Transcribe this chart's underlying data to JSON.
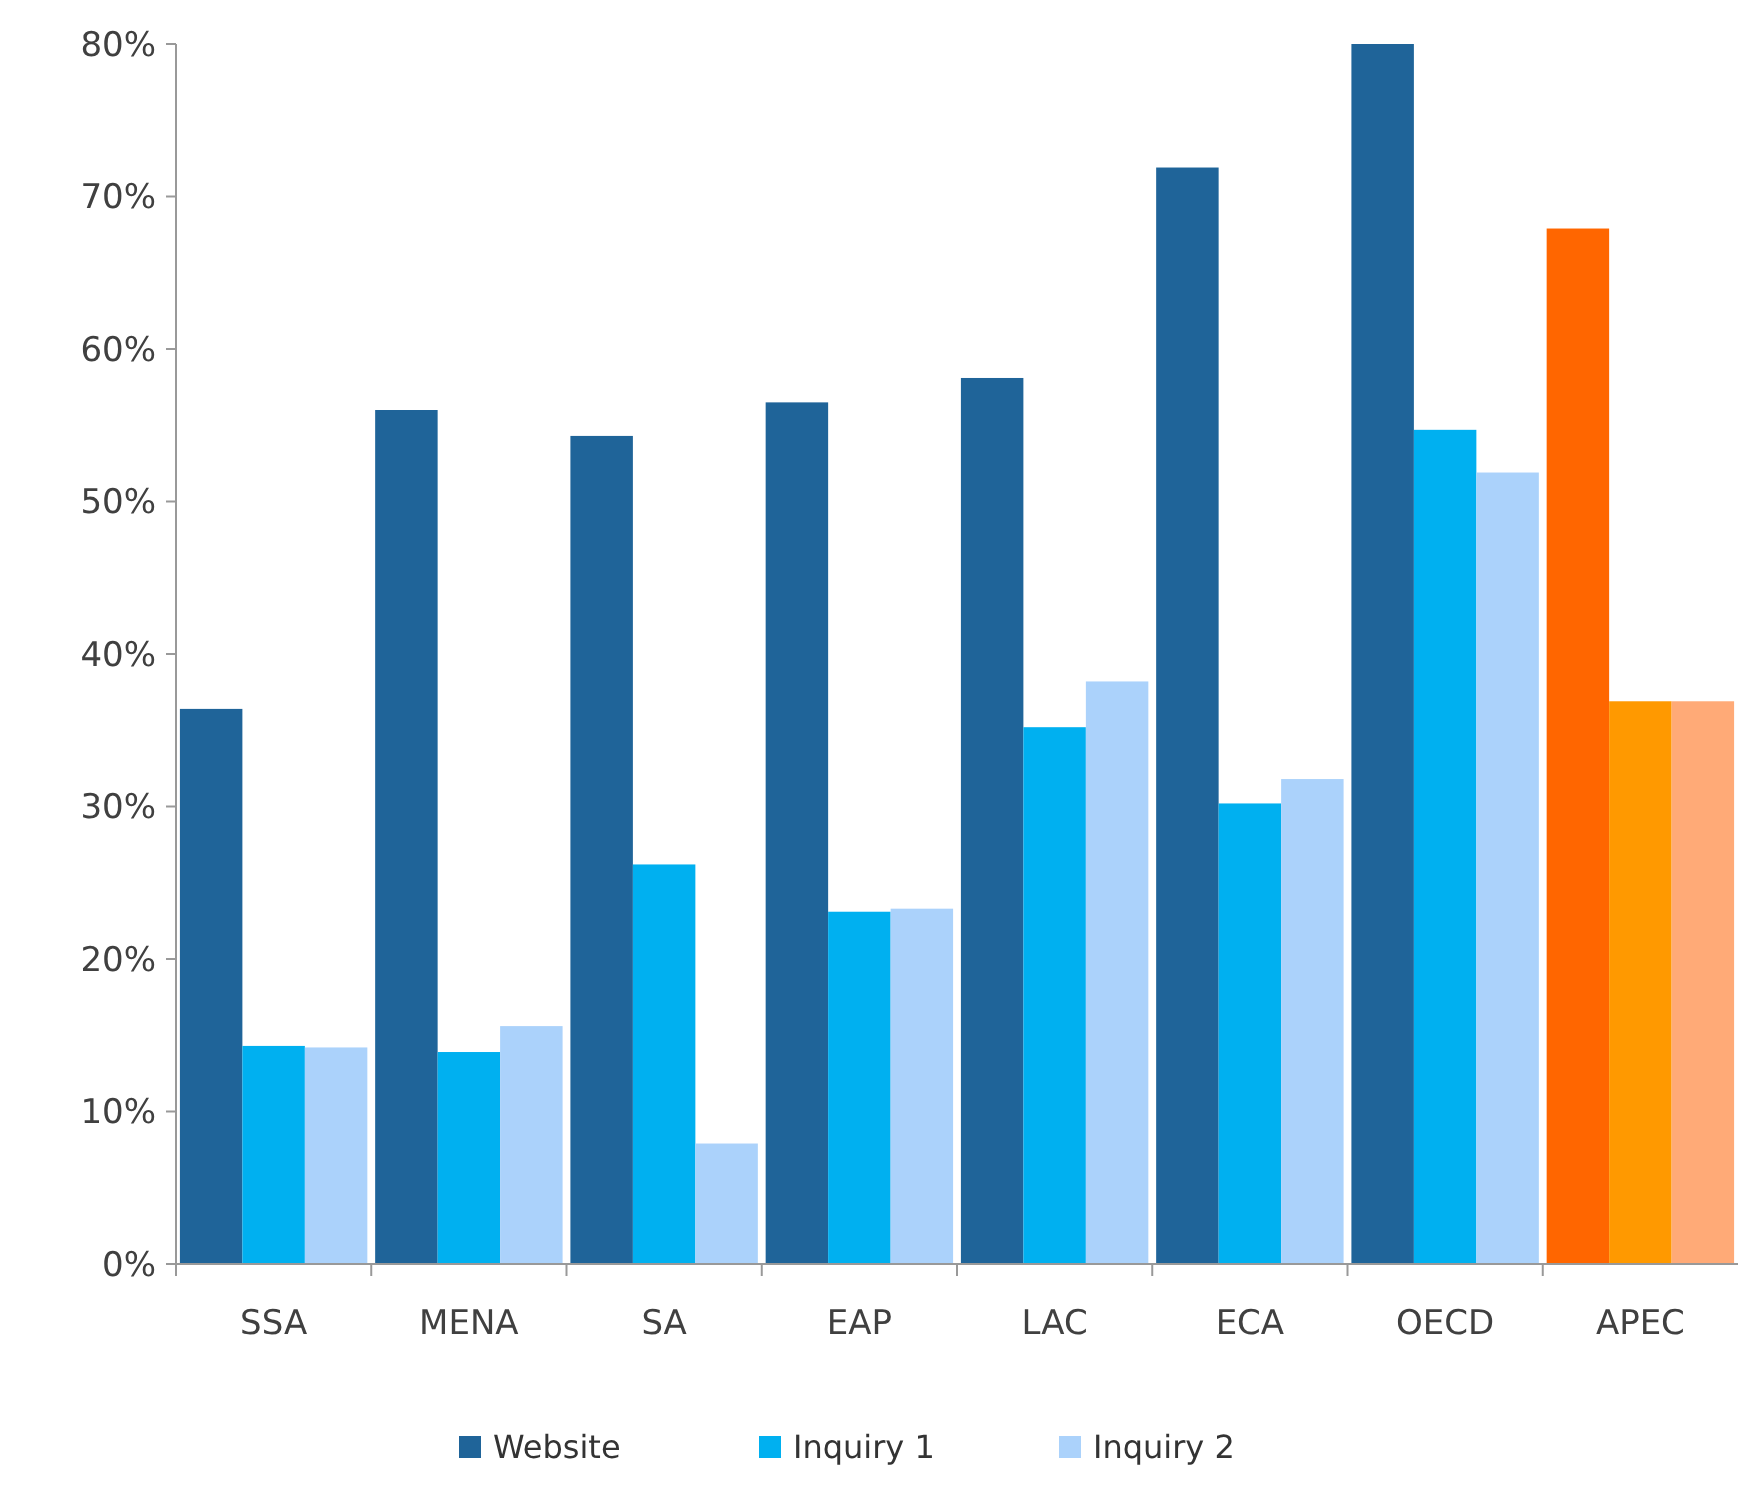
{
  "chart_data": {
    "type": "bar",
    "categories": [
      "SSA",
      "MENA",
      "SA",
      "EAP",
      "LAC",
      "ECA",
      "OECD",
      "APEC"
    ],
    "series": [
      {
        "name": "Website",
        "color": "#1f6499",
        "colors": [
          "#1f6499",
          "#1f6499",
          "#1f6499",
          "#1f6499",
          "#1f6499",
          "#1f6499",
          "#1f6499",
          "#ff6600"
        ],
        "values": [
          36.4,
          56.0,
          54.3,
          56.5,
          58.1,
          71.9,
          80,
          67.9
        ]
      },
      {
        "name": "Inquiry 1",
        "color": "#00b0f0",
        "colors": [
          "#00b0f0",
          "#00b0f0",
          "#00b0f0",
          "#00b0f0",
          "#00b0f0",
          "#00b0f0",
          "#00b0f0",
          "#ff9900"
        ],
        "values": [
          14.3,
          13.9,
          26.2,
          23.1,
          35.2,
          30.2,
          54.7,
          36.9
        ]
      },
      {
        "name": "Inquiry 2",
        "color": "#abd2fb",
        "colors": [
          "#abd2fb",
          "#abd2fb",
          "#abd2fb",
          "#abd2fb",
          "#abd2fb",
          "#abd2fb",
          "#abd2fb",
          "#ffaa77"
        ],
        "values": [
          14.2,
          15.6,
          7.9,
          23.3,
          38.2,
          31.8,
          51.9,
          36.9
        ]
      }
    ],
    "ylim": [
      0,
      80
    ],
    "yticks": [
      {
        "value": 0,
        "label": "0%"
      },
      {
        "value": 10,
        "label": "10%"
      },
      {
        "value": 20,
        "label": "20%"
      },
      {
        "value": 30,
        "label": "30%"
      },
      {
        "value": 40,
        "label": "40%"
      },
      {
        "value": 50,
        "label": "50%"
      },
      {
        "value": 60,
        "label": "60%"
      },
      {
        "value": 70,
        "label": "70%"
      },
      {
        "value": 80,
        "label": "80%"
      }
    ],
    "grid": false,
    "legend": "bottom"
  }
}
